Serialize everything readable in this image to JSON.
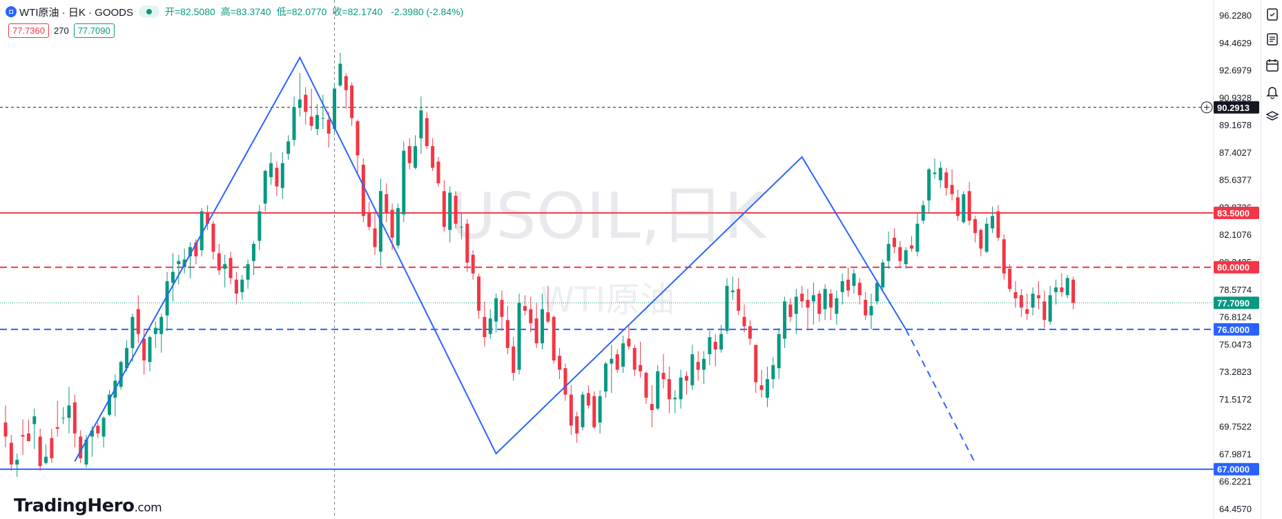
{
  "header": {
    "symbol_icon": "tradingview-symbol-icon",
    "title": "WTI原油 · 日K · GOODS",
    "status_dot_color": "#089981",
    "open": "开=82.5080",
    "high": "高=83.3740",
    "low": "低=82.0770",
    "close": "收=82.1740",
    "change": "-2.3980 (-2.84%)",
    "bid": "77.7360",
    "spread": "270",
    "ask": "77.7090"
  },
  "watermark": {
    "line1": "USOIL,日K",
    "line2": "WTI原油"
  },
  "logo": {
    "brand": "TradingHero",
    "suffix": ".com"
  },
  "right_toolbar": [
    "watchlist-icon",
    "news-icon",
    "calendar-icon",
    "alert-bell-icon",
    "layers-icon"
  ],
  "colors": {
    "up": "#089981",
    "down": "#f23645",
    "blue": "#2962ff",
    "red": "#f23645"
  },
  "chart_data": {
    "type": "candlestick",
    "y_axis": {
      "ticks": [
        "96.2280",
        "94.4629",
        "92.6979",
        "90.9328",
        "89.1678",
        "87.4027",
        "85.6377",
        "83.8726",
        "82.1076",
        "80.3425",
        "78.5774",
        "76.8124",
        "75.0473",
        "73.2823",
        "71.5172",
        "69.7522",
        "67.9871",
        "66.2221",
        "64.4570"
      ],
      "ylim": [
        64.457,
        96.228
      ]
    },
    "horizontal_lines": [
      {
        "price": 83.5,
        "label": "83.5000",
        "color": "#f23645",
        "style": "solid"
      },
      {
        "price": 80.0,
        "label": "80.0000",
        "color": "#f23645",
        "style": "dashed"
      },
      {
        "price": 76.0,
        "label": "76.0000",
        "color": "#2962ff",
        "style": "dashed"
      },
      {
        "price": 67.0,
        "label": "67.0000",
        "color": "#2962ff",
        "style": "solid"
      },
      {
        "price": 77.709,
        "label": "77.7090",
        "color": "#089981",
        "style": "dotted"
      },
      {
        "price": 90.2913,
        "label": "90.2913",
        "color": "#131722",
        "style": "crosshair"
      }
    ],
    "zigzag": [
      {
        "bar": 12,
        "price": 67.5
      },
      {
        "bar": 51,
        "price": 93.5
      },
      {
        "bar": 85,
        "price": 68.0
      },
      {
        "bar": 138,
        "price": 87.1
      },
      {
        "bar": 156,
        "price": 76.0
      }
    ],
    "projection": [
      {
        "bar": 156,
        "price": 76.0
      },
      {
        "bar": 168,
        "price": 67.4
      }
    ],
    "crosshair_bar": 57,
    "candles": [
      [
        70.0,
        71.1,
        68.4,
        69.1
      ],
      [
        68.7,
        69.2,
        66.9,
        67.3
      ],
      [
        67.3,
        68.0,
        66.5,
        67.6
      ],
      [
        69.2,
        70.2,
        67.9,
        69.1
      ],
      [
        69.3,
        70.2,
        68.8,
        68.8
      ],
      [
        69.9,
        70.9,
        68.3,
        70.4
      ],
      [
        69.1,
        69.6,
        66.9,
        67.2
      ],
      [
        67.4,
        68.6,
        67.3,
        67.8
      ],
      [
        69.0,
        69.6,
        67.4,
        67.7
      ],
      [
        69.7,
        71.4,
        69.1,
        69.6
      ],
      [
        70.3,
        71.0,
        69.9,
        70.3
      ],
      [
        70.3,
        72.3,
        69.3,
        71.1
      ],
      [
        71.3,
        71.8,
        68.4,
        69.3
      ],
      [
        69.1,
        69.5,
        67.4,
        67.7
      ],
      [
        67.3,
        69.2,
        67.1,
        68.9
      ],
      [
        69.1,
        69.8,
        67.8,
        69.5
      ],
      [
        69.8,
        70.0,
        69.0,
        69.3
      ],
      [
        69.1,
        70.4,
        68.4,
        70.3
      ],
      [
        70.5,
        72.1,
        70.4,
        71.8
      ],
      [
        71.6,
        73.1,
        70.4,
        72.7
      ],
      [
        72.3,
        74.0,
        72.1,
        73.9
      ],
      [
        73.5,
        75.3,
        73.3,
        74.8
      ],
      [
        74.8,
        77.0,
        73.9,
        76.8
      ],
      [
        77.3,
        78.2,
        75.1,
        75.7
      ],
      [
        75.4,
        76.0,
        73.1,
        74.0
      ],
      [
        73.9,
        75.6,
        73.3,
        75.5
      ],
      [
        75.7,
        76.5,
        74.8,
        76.1
      ],
      [
        75.7,
        77.0,
        74.5,
        76.8
      ],
      [
        76.9,
        79.7,
        75.9,
        79.1
      ],
      [
        79.0,
        80.9,
        77.8,
        79.7
      ],
      [
        80.2,
        80.8,
        78.9,
        80.4
      ],
      [
        80.0,
        81.2,
        79.6,
        80.5
      ],
      [
        80.7,
        81.6,
        79.3,
        81.3
      ],
      [
        81.6,
        81.8,
        80.2,
        80.7
      ],
      [
        81.1,
        83.8,
        80.7,
        83.6
      ],
      [
        83.5,
        84.0,
        82.4,
        82.8
      ],
      [
        82.8,
        83.0,
        80.5,
        81.0
      ],
      [
        80.9,
        81.5,
        79.5,
        79.8
      ],
      [
        79.9,
        80.8,
        78.7,
        80.2
      ],
      [
        80.6,
        81.0,
        78.9,
        79.3
      ],
      [
        79.2,
        79.7,
        77.6,
        78.3
      ],
      [
        78.4,
        79.5,
        77.9,
        79.2
      ],
      [
        79.2,
        80.5,
        78.6,
        80.2
      ],
      [
        80.4,
        81.7,
        79.5,
        81.5
      ],
      [
        81.7,
        84.0,
        81.1,
        83.6
      ],
      [
        84.1,
        86.3,
        83.6,
        86.2
      ],
      [
        85.8,
        87.4,
        85.3,
        86.7
      ],
      [
        86.4,
        86.8,
        84.6,
        85.2
      ],
      [
        85.1,
        87.4,
        84.4,
        86.7
      ],
      [
        87.3,
        88.5,
        86.9,
        88.1
      ],
      [
        88.2,
        91.0,
        87.8,
        90.3
      ],
      [
        90.3,
        92.5,
        89.7,
        90.8
      ],
      [
        91.1,
        91.6,
        89.2,
        90.0
      ],
      [
        89.7,
        91.5,
        88.8,
        89.1
      ],
      [
        88.9,
        90.5,
        88.5,
        89.8
      ],
      [
        89.6,
        91.1,
        88.9,
        89.6
      ],
      [
        89.5,
        90.0,
        87.7,
        88.6
      ],
      [
        88.9,
        91.7,
        88.6,
        91.5
      ],
      [
        91.7,
        93.8,
        91.6,
        93.1
      ],
      [
        92.3,
        92.5,
        90.2,
        91.4
      ],
      [
        91.7,
        91.9,
        89.1,
        89.6
      ],
      [
        89.4,
        89.5,
        85.9,
        87.2
      ],
      [
        86.6,
        87.0,
        82.9,
        83.3
      ],
      [
        83.5,
        84.2,
        82.4,
        82.6
      ],
      [
        82.5,
        83.6,
        80.8,
        81.3
      ],
      [
        81.0,
        85.7,
        80.1,
        84.9
      ],
      [
        84.7,
        85.4,
        82.9,
        83.5
      ],
      [
        83.7,
        84.1,
        81.1,
        81.9
      ],
      [
        81.4,
        84.1,
        81.2,
        83.8
      ],
      [
        83.4,
        88.1,
        82.9,
        87.5
      ],
      [
        87.8,
        88.3,
        86.3,
        86.7
      ],
      [
        86.4,
        88.5,
        86.3,
        87.8
      ],
      [
        88.3,
        91.0,
        87.3,
        90.1
      ],
      [
        89.6,
        90.0,
        87.6,
        87.8
      ],
      [
        87.8,
        88.3,
        86.2,
        86.4
      ],
      [
        86.8,
        87.1,
        85.2,
        85.4
      ],
      [
        84.9,
        85.6,
        82.3,
        82.6
      ],
      [
        82.4,
        85.2,
        81.6,
        84.8
      ],
      [
        84.6,
        84.9,
        82.5,
        82.8
      ],
      [
        82.6,
        83.5,
        81.8,
        82.6
      ],
      [
        82.8,
        83.1,
        79.7,
        80.3
      ],
      [
        80.8,
        81.1,
        79.2,
        79.6
      ],
      [
        79.4,
        79.6,
        76.7,
        77.2
      ],
      [
        76.8,
        77.8,
        74.9,
        75.5
      ],
      [
        75.7,
        77.3,
        75.4,
        76.7
      ],
      [
        76.5,
        78.3,
        75.8,
        78.0
      ],
      [
        77.9,
        78.5,
        75.9,
        76.8
      ],
      [
        76.6,
        77.5,
        74.4,
        74.8
      ],
      [
        74.9,
        75.5,
        72.7,
        73.2
      ],
      [
        73.4,
        78.3,
        73.1,
        77.7
      ],
      [
        77.5,
        78.2,
        76.9,
        77.2
      ],
      [
        77.3,
        78.1,
        75.8,
        76.4
      ],
      [
        76.7,
        77.7,
        74.8,
        75.1
      ],
      [
        75.1,
        78.3,
        74.7,
        77.3
      ],
      [
        77.1,
        78.8,
        76.4,
        76.5
      ],
      [
        76.8,
        76.9,
        73.8,
        74.0
      ],
      [
        74.3,
        74.8,
        72.8,
        73.4
      ],
      [
        73.5,
        73.8,
        71.4,
        71.8
      ],
      [
        71.8,
        72.4,
        69.2,
        69.8
      ],
      [
        70.4,
        70.7,
        68.7,
        69.3
      ],
      [
        69.7,
        72.0,
        69.5,
        71.8
      ],
      [
        71.9,
        72.4,
        70.9,
        71.1
      ],
      [
        71.7,
        72.0,
        69.6,
        69.7
      ],
      [
        70.0,
        72.1,
        69.3,
        71.7
      ],
      [
        72.0,
        73.9,
        71.6,
        73.8
      ],
      [
        73.8,
        75.0,
        71.9,
        74.1
      ],
      [
        74.4,
        74.7,
        73.2,
        73.4
      ],
      [
        73.6,
        75.6,
        73.2,
        75.1
      ],
      [
        75.4,
        76.3,
        74.7,
        74.9
      ],
      [
        74.8,
        75.0,
        73.0,
        73.4
      ],
      [
        73.7,
        75.2,
        72.9,
        73.3
      ],
      [
        73.2,
        73.3,
        71.2,
        71.6
      ],
      [
        71.2,
        72.4,
        69.7,
        70.8
      ],
      [
        70.9,
        73.7,
        70.8,
        73.3
      ],
      [
        73.2,
        74.4,
        72.2,
        72.8
      ],
      [
        72.8,
        73.6,
        70.6,
        71.5
      ],
      [
        71.5,
        72.1,
        70.6,
        71.6
      ],
      [
        71.5,
        73.4,
        70.9,
        72.9
      ],
      [
        73.0,
        73.3,
        71.8,
        72.7
      ],
      [
        72.4,
        75.0,
        72.1,
        74.4
      ],
      [
        73.9,
        74.6,
        72.7,
        73.4
      ],
      [
        73.4,
        74.6,
        72.5,
        74.1
      ],
      [
        74.4,
        75.9,
        73.7,
        75.5
      ],
      [
        75.2,
        75.7,
        73.6,
        74.7
      ],
      [
        74.7,
        76.3,
        74.5,
        75.7
      ],
      [
        75.9,
        79.3,
        75.7,
        78.8
      ],
      [
        78.4,
        79.4,
        77.9,
        78.5
      ],
      [
        78.6,
        79.3,
        76.9,
        77.2
      ],
      [
        76.8,
        77.6,
        75.8,
        76.2
      ],
      [
        76.2,
        76.6,
        75.0,
        75.4
      ],
      [
        75.0,
        75.0,
        71.9,
        72.6
      ],
      [
        72.4,
        73.4,
        71.6,
        72.1
      ],
      [
        71.6,
        73.6,
        71.0,
        72.8
      ],
      [
        72.8,
        74.2,
        72.2,
        73.7
      ],
      [
        73.5,
        76.1,
        72.8,
        75.7
      ],
      [
        75.4,
        78.1,
        74.8,
        77.8
      ],
      [
        77.6,
        78.0,
        76.5,
        76.8
      ],
      [
        77.0,
        78.6,
        75.7,
        78.1
      ],
      [
        78.3,
        78.8,
        77.4,
        77.8
      ],
      [
        77.9,
        78.6,
        76.0,
        77.4
      ],
      [
        77.8,
        79.0,
        76.3,
        78.2
      ],
      [
        78.3,
        78.5,
        76.5,
        77.0
      ],
      [
        77.3,
        78.9,
        76.6,
        78.6
      ],
      [
        78.3,
        78.6,
        76.6,
        77.4
      ],
      [
        77.0,
        78.5,
        76.3,
        78.0
      ],
      [
        78.4,
        79.6,
        77.6,
        79.1
      ],
      [
        79.2,
        80.0,
        78.1,
        78.5
      ],
      [
        78.8,
        79.9,
        78.3,
        79.6
      ],
      [
        79.0,
        79.3,
        77.6,
        78.2
      ],
      [
        77.9,
        78.4,
        76.6,
        76.9
      ],
      [
        76.9,
        78.3,
        76.0,
        77.5
      ],
      [
        77.8,
        79.2,
        77.6,
        79.0
      ],
      [
        78.7,
        80.5,
        78.5,
        80.3
      ],
      [
        80.4,
        82.3,
        79.9,
        81.5
      ],
      [
        81.9,
        82.5,
        80.9,
        81.3
      ],
      [
        81.3,
        81.7,
        80.0,
        80.4
      ],
      [
        80.2,
        81.3,
        79.9,
        81.1
      ],
      [
        81.4,
        82.0,
        81.0,
        81.2
      ],
      [
        81.0,
        83.5,
        80.7,
        82.8
      ],
      [
        83.0,
        84.3,
        82.8,
        84.0
      ],
      [
        84.3,
        86.4,
        83.5,
        86.3
      ],
      [
        86.0,
        87.0,
        85.7,
        86.1
      ],
      [
        85.6,
        86.8,
        85.1,
        86.4
      ],
      [
        86.1,
        86.4,
        84.6,
        85.1
      ],
      [
        85.3,
        86.3,
        84.3,
        84.7
      ],
      [
        84.5,
        85.0,
        83.0,
        83.3
      ],
      [
        82.9,
        84.9,
        82.8,
        84.7
      ],
      [
        84.9,
        85.5,
        82.7,
        83.0
      ],
      [
        83.1,
        83.3,
        81.6,
        82.2
      ],
      [
        82.4,
        82.5,
        80.7,
        81.2
      ],
      [
        81.0,
        83.2,
        80.9,
        82.8
      ],
      [
        82.5,
        83.9,
        82.2,
        83.3
      ],
      [
        83.6,
        84.0,
        81.7,
        81.9
      ],
      [
        81.8,
        82.1,
        79.2,
        79.6
      ],
      [
        79.9,
        80.2,
        78.4,
        78.6
      ],
      [
        78.4,
        79.1,
        77.4,
        78.0
      ],
      [
        78.2,
        78.6,
        76.8,
        77.4
      ],
      [
        77.3,
        78.3,
        76.6,
        77.0
      ],
      [
        77.4,
        78.7,
        76.9,
        78.3
      ],
      [
        78.2,
        79.1,
        77.3,
        78.0
      ],
      [
        77.8,
        78.5,
        76.1,
        76.6
      ],
      [
        76.5,
        78.8,
        76.3,
        78.2
      ],
      [
        78.4,
        79.2,
        77.6,
        78.7
      ],
      [
        78.7,
        79.6,
        78.1,
        78.4
      ],
      [
        78.2,
        79.5,
        78.0,
        79.3
      ],
      [
        79.2,
        79.4,
        77.3,
        77.7
      ]
    ]
  }
}
